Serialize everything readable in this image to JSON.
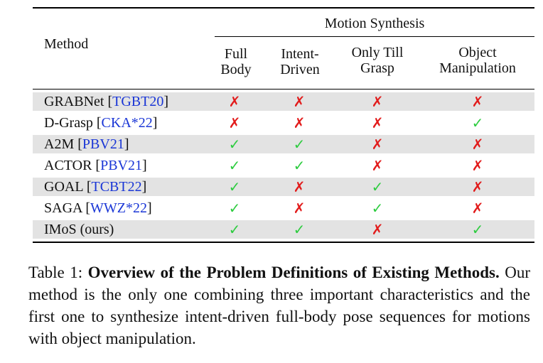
{
  "table": {
    "header": {
      "method": "Method",
      "group": "Motion Synthesis",
      "columns": [
        {
          "line1": "Full",
          "line2": "Body"
        },
        {
          "line1": "Intent-",
          "line2": "Driven"
        },
        {
          "line1": "Only Till",
          "line2": "Grasp"
        },
        {
          "line1": "Object",
          "line2": "Manipulation"
        }
      ]
    },
    "symbols": {
      "yes": "✓",
      "no": "✗"
    },
    "rows": [
      {
        "name": "GRABNet",
        "cite": "TGBT20",
        "values": [
          false,
          false,
          false,
          false
        ],
        "shaded": true
      },
      {
        "name": "D-Grasp",
        "cite": "CKA*22",
        "values": [
          false,
          false,
          false,
          true
        ],
        "shaded": false
      },
      {
        "name": "A2M",
        "cite": "PBV21",
        "values": [
          true,
          true,
          false,
          false
        ],
        "shaded": true
      },
      {
        "name": "ACTOR",
        "cite": "PBV21",
        "values": [
          true,
          true,
          false,
          false
        ],
        "shaded": false
      },
      {
        "name": "GOAL",
        "cite": "TCBT22",
        "values": [
          true,
          false,
          true,
          false
        ],
        "shaded": true
      },
      {
        "name": "SAGA",
        "cite": "WWZ*22",
        "values": [
          true,
          false,
          true,
          false
        ],
        "shaded": false
      },
      {
        "name": "IMoS (ours)",
        "cite": "",
        "values": [
          true,
          true,
          false,
          true
        ],
        "shaded": true
      }
    ]
  },
  "caption": {
    "label": "Table 1:",
    "title": "Overview of the Problem Definitions of Existing Methods.",
    "text": "Our method is the only one combining three important characteristics and the first one to synthesize intent-driven full-body pose sequences for motions with object manipulation."
  }
}
